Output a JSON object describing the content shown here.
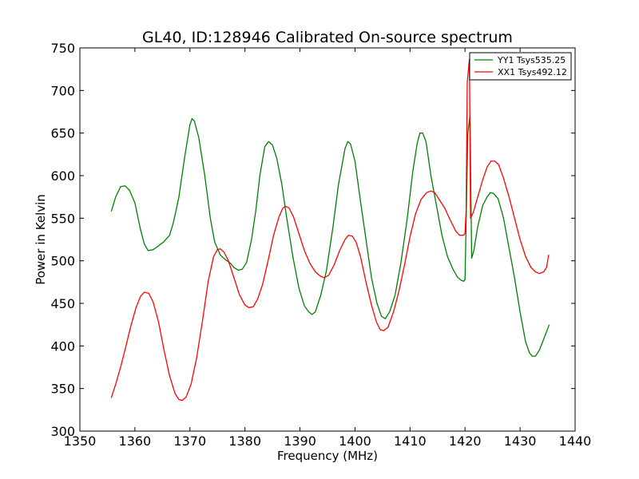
{
  "chart_data": {
    "type": "line",
    "title": "GL40, ID:128946 Calibrated On-source spectrum",
    "xlabel": "Frequency (MHz)",
    "ylabel": "Power in Kelvin",
    "xlim": [
      1350,
      1440
    ],
    "ylim": [
      300,
      750
    ],
    "xticks": [
      "1350",
      "1360",
      "1370",
      "1380",
      "1390",
      "1400",
      "1410",
      "1420",
      "1430",
      "1440"
    ],
    "yticks": [
      "300",
      "350",
      "400",
      "450",
      "500",
      "550",
      "600",
      "650",
      "700",
      "750"
    ],
    "grid": false,
    "legend_position": "top-right",
    "series": [
      {
        "name": "YY1 Tsys535.25",
        "color": "#008000",
        "points": [
          [
            1355.7,
            558
          ],
          [
            1356.5,
            575
          ],
          [
            1357.4,
            587
          ],
          [
            1358.2,
            588
          ],
          [
            1359.0,
            583
          ],
          [
            1360.0,
            568
          ],
          [
            1361.0,
            537
          ],
          [
            1361.7,
            520
          ],
          [
            1362.4,
            512
          ],
          [
            1363.3,
            513
          ],
          [
            1364.2,
            517
          ],
          [
            1365.2,
            522
          ],
          [
            1366.3,
            530
          ],
          [
            1367.0,
            545
          ],
          [
            1368.0,
            575
          ],
          [
            1369.0,
            620
          ],
          [
            1370.0,
            660
          ],
          [
            1370.4,
            667
          ],
          [
            1370.8,
            664
          ],
          [
            1371.6,
            645
          ],
          [
            1372.7,
            600
          ],
          [
            1373.7,
            550
          ],
          [
            1374.5,
            522
          ],
          [
            1375.5,
            507
          ],
          [
            1376.5,
            501
          ],
          [
            1377.4,
            497
          ],
          [
            1378.0,
            492
          ],
          [
            1378.8,
            489
          ],
          [
            1379.5,
            490
          ],
          [
            1380.3,
            498
          ],
          [
            1381.2,
            525
          ],
          [
            1382.0,
            560
          ],
          [
            1382.7,
            600
          ],
          [
            1383.6,
            634
          ],
          [
            1384.3,
            640
          ],
          [
            1385.0,
            636
          ],
          [
            1385.8,
            620
          ],
          [
            1386.7,
            590
          ],
          [
            1387.6,
            550
          ],
          [
            1388.7,
            505
          ],
          [
            1389.8,
            468
          ],
          [
            1390.8,
            447
          ],
          [
            1391.6,
            440
          ],
          [
            1392.2,
            437
          ],
          [
            1392.8,
            440
          ],
          [
            1393.8,
            460
          ],
          [
            1394.8,
            488
          ],
          [
            1396.0,
            540
          ],
          [
            1397.0,
            590
          ],
          [
            1398.2,
            632
          ],
          [
            1398.7,
            640
          ],
          [
            1399.2,
            637
          ],
          [
            1400.0,
            617
          ],
          [
            1401.0,
            570
          ],
          [
            1402.0,
            525
          ],
          [
            1403.0,
            480
          ],
          [
            1404.0,
            450
          ],
          [
            1404.8,
            435
          ],
          [
            1405.5,
            432
          ],
          [
            1406.3,
            440
          ],
          [
            1407.3,
            460
          ],
          [
            1408.4,
            500
          ],
          [
            1409.5,
            550
          ],
          [
            1410.5,
            605
          ],
          [
            1411.3,
            638
          ],
          [
            1411.8,
            650
          ],
          [
            1412.3,
            650
          ],
          [
            1412.9,
            640
          ],
          [
            1413.8,
            600
          ],
          [
            1414.8,
            565
          ],
          [
            1415.8,
            530
          ],
          [
            1416.8,
            505
          ],
          [
            1417.8,
            490
          ],
          [
            1418.6,
            481
          ],
          [
            1419.3,
            477
          ],
          [
            1419.8,
            476
          ],
          [
            1420.0,
            478
          ],
          [
            1420.5,
            650
          ],
          [
            1420.9,
            670
          ],
          [
            1421.2,
            503
          ],
          [
            1421.6,
            512
          ],
          [
            1422.3,
            540
          ],
          [
            1423.2,
            565
          ],
          [
            1424.0,
            575
          ],
          [
            1424.6,
            580
          ],
          [
            1425.2,
            579
          ],
          [
            1426.0,
            573
          ],
          [
            1427.0,
            550
          ],
          [
            1428.0,
            515
          ],
          [
            1429.0,
            480
          ],
          [
            1430.0,
            440
          ],
          [
            1431.0,
            405
          ],
          [
            1431.7,
            392
          ],
          [
            1432.2,
            388
          ],
          [
            1432.8,
            388
          ],
          [
            1433.5,
            395
          ],
          [
            1434.3,
            408
          ],
          [
            1435.3,
            425
          ]
        ]
      },
      {
        "name": "XX1 Tsys492.12",
        "color": "#ff0000",
        "points": [
          [
            1355.7,
            339
          ],
          [
            1356.5,
            355
          ],
          [
            1357.4,
            375
          ],
          [
            1358.3,
            398
          ],
          [
            1359.2,
            422
          ],
          [
            1360.2,
            445
          ],
          [
            1361.0,
            458
          ],
          [
            1361.7,
            463
          ],
          [
            1362.5,
            462
          ],
          [
            1363.3,
            452
          ],
          [
            1364.3,
            428
          ],
          [
            1365.3,
            395
          ],
          [
            1366.3,
            365
          ],
          [
            1367.3,
            344
          ],
          [
            1368.0,
            337
          ],
          [
            1368.6,
            336
          ],
          [
            1369.3,
            340
          ],
          [
            1370.2,
            355
          ],
          [
            1371.2,
            385
          ],
          [
            1372.3,
            430
          ],
          [
            1373.3,
            475
          ],
          [
            1374.3,
            505
          ],
          [
            1375.0,
            513
          ],
          [
            1375.5,
            514
          ],
          [
            1376.2,
            510
          ],
          [
            1377.0,
            500
          ],
          [
            1378.0,
            480
          ],
          [
            1379.0,
            460
          ],
          [
            1380.0,
            448
          ],
          [
            1380.7,
            445
          ],
          [
            1381.5,
            446
          ],
          [
            1382.3,
            455
          ],
          [
            1383.2,
            472
          ],
          [
            1384.2,
            500
          ],
          [
            1385.2,
            530
          ],
          [
            1386.2,
            552
          ],
          [
            1386.9,
            562
          ],
          [
            1387.4,
            564
          ],
          [
            1388.0,
            562
          ],
          [
            1388.8,
            552
          ],
          [
            1389.8,
            532
          ],
          [
            1390.8,
            512
          ],
          [
            1391.8,
            497
          ],
          [
            1392.8,
            487
          ],
          [
            1393.7,
            482
          ],
          [
            1394.4,
            480
          ],
          [
            1395.2,
            483
          ],
          [
            1396.2,
            495
          ],
          [
            1397.2,
            512
          ],
          [
            1398.2,
            525
          ],
          [
            1398.8,
            530
          ],
          [
            1399.5,
            529
          ],
          [
            1400.2,
            522
          ],
          [
            1401.0,
            505
          ],
          [
            1402.0,
            475
          ],
          [
            1403.0,
            448
          ],
          [
            1403.9,
            428
          ],
          [
            1404.6,
            419
          ],
          [
            1405.2,
            418
          ],
          [
            1406.0,
            422
          ],
          [
            1407.0,
            440
          ],
          [
            1408.0,
            465
          ],
          [
            1409.0,
            495
          ],
          [
            1410.0,
            528
          ],
          [
            1411.0,
            555
          ],
          [
            1412.0,
            572
          ],
          [
            1413.0,
            580
          ],
          [
            1413.8,
            582
          ],
          [
            1414.5,
            580
          ],
          [
            1415.3,
            572
          ],
          [
            1416.3,
            562
          ],
          [
            1417.3,
            548
          ],
          [
            1418.3,
            535
          ],
          [
            1419.0,
            530
          ],
          [
            1419.7,
            530
          ],
          [
            1420.0,
            532
          ],
          [
            1420.2,
            560
          ],
          [
            1420.4,
            710
          ],
          [
            1420.8,
            737
          ],
          [
            1421.0,
            550
          ],
          [
            1421.5,
            557
          ],
          [
            1422.3,
            575
          ],
          [
            1423.2,
            595
          ],
          [
            1424.0,
            610
          ],
          [
            1424.7,
            617
          ],
          [
            1425.4,
            617
          ],
          [
            1426.1,
            613
          ],
          [
            1427.0,
            597
          ],
          [
            1428.0,
            575
          ],
          [
            1429.0,
            550
          ],
          [
            1430.0,
            525
          ],
          [
            1431.0,
            505
          ],
          [
            1432.0,
            492
          ],
          [
            1432.8,
            487
          ],
          [
            1433.5,
            485
          ],
          [
            1434.3,
            487
          ],
          [
            1434.8,
            492
          ],
          [
            1435.2,
            507
          ]
        ]
      }
    ]
  }
}
